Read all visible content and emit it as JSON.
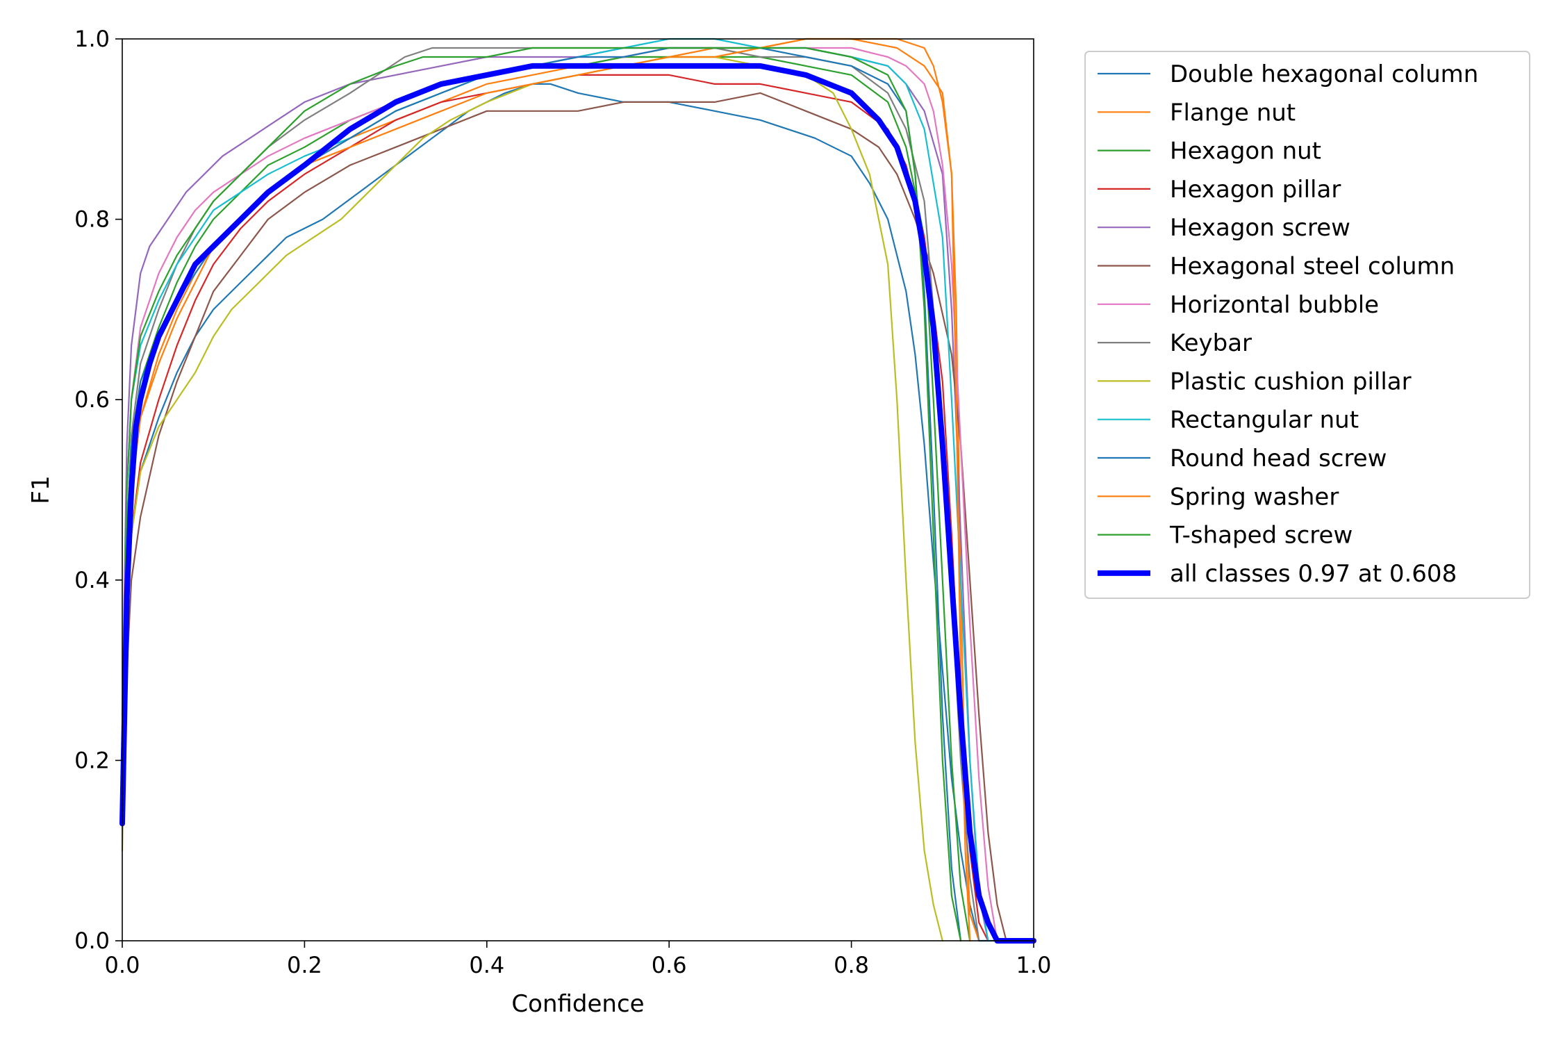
{
  "chart_data": {
    "type": "line",
    "title": "",
    "xlabel": "Confidence",
    "ylabel": "F1",
    "xlim": [
      0.0,
      1.0
    ],
    "ylim": [
      0.0,
      1.0
    ],
    "xticks": [
      "0.0",
      "0.2",
      "0.4",
      "0.6",
      "0.8",
      "1.0"
    ],
    "yticks": [
      "0.0",
      "0.2",
      "0.4",
      "0.6",
      "0.8",
      "1.0"
    ],
    "grid": false,
    "legend_position": "outside right, top",
    "series": [
      {
        "name": "Double hexagonal column",
        "color": "#1f77b4",
        "width": "thin",
        "x": [
          0.0,
          0.005,
          0.01,
          0.02,
          0.04,
          0.06,
          0.08,
          0.1,
          0.12,
          0.15,
          0.18,
          0.22,
          0.26,
          0.3,
          0.34,
          0.38,
          0.42,
          0.45,
          0.47,
          0.5,
          0.55,
          0.6,
          0.65,
          0.7,
          0.73,
          0.76,
          0.8,
          0.82,
          0.84,
          0.86,
          0.87,
          0.88,
          0.89,
          0.9,
          0.91,
          0.92,
          0.93,
          0.94,
          0.95,
          0.96
        ],
        "y": [
          0.15,
          0.35,
          0.45,
          0.52,
          0.58,
          0.63,
          0.67,
          0.7,
          0.72,
          0.75,
          0.78,
          0.8,
          0.83,
          0.86,
          0.89,
          0.92,
          0.94,
          0.95,
          0.95,
          0.94,
          0.93,
          0.93,
          0.92,
          0.91,
          0.9,
          0.89,
          0.87,
          0.84,
          0.8,
          0.72,
          0.65,
          0.55,
          0.42,
          0.3,
          0.18,
          0.1,
          0.04,
          0.0,
          0.0,
          0.0
        ]
      },
      {
        "name": "Flange nut",
        "color": "#ff7f0e",
        "width": "thin",
        "x": [
          0.0,
          0.005,
          0.01,
          0.02,
          0.04,
          0.06,
          0.08,
          0.1,
          0.13,
          0.16,
          0.2,
          0.25,
          0.3,
          0.35,
          0.4,
          0.45,
          0.5,
          0.55,
          0.6,
          0.65,
          0.7,
          0.75,
          0.8,
          0.85,
          0.88,
          0.9,
          0.91,
          0.915,
          0.92,
          0.925,
          0.93,
          0.94
        ],
        "y": [
          0.15,
          0.4,
          0.5,
          0.58,
          0.65,
          0.7,
          0.74,
          0.77,
          0.8,
          0.83,
          0.86,
          0.89,
          0.91,
          0.93,
          0.95,
          0.96,
          0.97,
          0.98,
          0.98,
          0.99,
          0.99,
          1.0,
          1.0,
          0.99,
          0.97,
          0.94,
          0.85,
          0.7,
          0.4,
          0.15,
          0.03,
          0.0
        ]
      },
      {
        "name": "Hexagon nut",
        "color": "#2ca02c",
        "width": "thin",
        "x": [
          0.0,
          0.005,
          0.01,
          0.02,
          0.04,
          0.06,
          0.08,
          0.1,
          0.13,
          0.16,
          0.2,
          0.25,
          0.3,
          0.35,
          0.4,
          0.45,
          0.5,
          0.55,
          0.6,
          0.65,
          0.7,
          0.75,
          0.8,
          0.84,
          0.86,
          0.88,
          0.89,
          0.9,
          0.91,
          0.92,
          0.93
        ],
        "y": [
          0.2,
          0.45,
          0.55,
          0.62,
          0.68,
          0.73,
          0.77,
          0.8,
          0.83,
          0.86,
          0.88,
          0.91,
          0.93,
          0.95,
          0.96,
          0.97,
          0.97,
          0.98,
          0.98,
          0.98,
          0.98,
          0.97,
          0.96,
          0.93,
          0.88,
          0.78,
          0.6,
          0.4,
          0.2,
          0.06,
          0.0
        ]
      },
      {
        "name": "Hexagon pillar",
        "color": "#d62728",
        "width": "thin",
        "x": [
          0.0,
          0.005,
          0.01,
          0.02,
          0.04,
          0.06,
          0.08,
          0.1,
          0.13,
          0.16,
          0.2,
          0.25,
          0.3,
          0.35,
          0.4,
          0.45,
          0.5,
          0.55,
          0.6,
          0.65,
          0.7,
          0.75,
          0.8,
          0.84,
          0.86,
          0.88,
          0.9,
          0.91,
          0.92,
          0.93,
          0.94,
          0.95
        ],
        "y": [
          0.15,
          0.35,
          0.45,
          0.53,
          0.6,
          0.66,
          0.71,
          0.75,
          0.79,
          0.82,
          0.85,
          0.88,
          0.91,
          0.93,
          0.94,
          0.95,
          0.96,
          0.96,
          0.96,
          0.95,
          0.95,
          0.94,
          0.93,
          0.9,
          0.86,
          0.78,
          0.62,
          0.45,
          0.25,
          0.1,
          0.02,
          0.0
        ]
      },
      {
        "name": "Hexagon screw",
        "color": "#9467bd",
        "width": "thin",
        "x": [
          0.0,
          0.005,
          0.01,
          0.02,
          0.03,
          0.05,
          0.07,
          0.09,
          0.11,
          0.14,
          0.17,
          0.2,
          0.25,
          0.3,
          0.35,
          0.4,
          0.45,
          0.5,
          0.55,
          0.6,
          0.65,
          0.7,
          0.75,
          0.8,
          0.84,
          0.86,
          0.88,
          0.9,
          0.91,
          0.92,
          0.93,
          0.94,
          0.95
        ],
        "y": [
          0.25,
          0.55,
          0.66,
          0.74,
          0.77,
          0.8,
          0.83,
          0.85,
          0.87,
          0.89,
          0.91,
          0.93,
          0.95,
          0.96,
          0.97,
          0.98,
          0.98,
          0.98,
          0.99,
          0.99,
          0.99,
          0.99,
          0.99,
          0.98,
          0.97,
          0.95,
          0.92,
          0.85,
          0.7,
          0.45,
          0.2,
          0.05,
          0.0
        ]
      },
      {
        "name": "Hexagonal steel column",
        "color": "#8c564b",
        "width": "thin",
        "x": [
          0.0,
          0.005,
          0.01,
          0.02,
          0.04,
          0.06,
          0.08,
          0.1,
          0.13,
          0.16,
          0.2,
          0.25,
          0.3,
          0.35,
          0.4,
          0.45,
          0.5,
          0.55,
          0.6,
          0.65,
          0.7,
          0.75,
          0.8,
          0.83,
          0.85,
          0.87,
          0.89,
          0.91,
          0.92,
          0.93,
          0.94,
          0.95,
          0.96,
          0.97
        ],
        "y": [
          0.15,
          0.3,
          0.4,
          0.47,
          0.56,
          0.62,
          0.67,
          0.72,
          0.76,
          0.8,
          0.83,
          0.86,
          0.88,
          0.9,
          0.92,
          0.92,
          0.92,
          0.93,
          0.93,
          0.93,
          0.94,
          0.92,
          0.9,
          0.88,
          0.85,
          0.8,
          0.74,
          0.65,
          0.55,
          0.4,
          0.25,
          0.12,
          0.04,
          0.0
        ]
      },
      {
        "name": "Horizontal bubble",
        "color": "#e377c2",
        "width": "thin",
        "x": [
          0.0,
          0.005,
          0.01,
          0.02,
          0.04,
          0.06,
          0.08,
          0.1,
          0.13,
          0.16,
          0.2,
          0.25,
          0.3,
          0.35,
          0.4,
          0.45,
          0.5,
          0.55,
          0.6,
          0.65,
          0.7,
          0.75,
          0.8,
          0.84,
          0.86,
          0.88,
          0.89,
          0.9,
          0.91,
          0.92,
          0.93,
          0.94,
          0.95,
          0.96
        ],
        "y": [
          0.2,
          0.5,
          0.6,
          0.68,
          0.74,
          0.78,
          0.81,
          0.83,
          0.85,
          0.87,
          0.89,
          0.91,
          0.93,
          0.95,
          0.96,
          0.97,
          0.98,
          0.98,
          0.99,
          0.99,
          0.99,
          0.99,
          0.99,
          0.98,
          0.97,
          0.95,
          0.92,
          0.86,
          0.75,
          0.55,
          0.35,
          0.18,
          0.06,
          0.0
        ]
      },
      {
        "name": "Keybar",
        "color": "#7f7f7f",
        "width": "thin",
        "x": [
          0.0,
          0.005,
          0.01,
          0.02,
          0.04,
          0.06,
          0.08,
          0.1,
          0.13,
          0.16,
          0.2,
          0.25,
          0.28,
          0.31,
          0.34,
          0.37,
          0.4,
          0.45,
          0.5,
          0.55,
          0.6,
          0.65,
          0.7,
          0.75,
          0.8,
          0.84,
          0.86,
          0.88,
          0.89,
          0.9,
          0.91,
          0.92,
          0.93,
          0.94
        ],
        "y": [
          0.2,
          0.45,
          0.56,
          0.64,
          0.7,
          0.75,
          0.79,
          0.82,
          0.85,
          0.88,
          0.91,
          0.94,
          0.96,
          0.98,
          0.99,
          0.99,
          0.99,
          0.99,
          0.99,
          0.99,
          0.99,
          0.99,
          0.98,
          0.98,
          0.97,
          0.94,
          0.9,
          0.82,
          0.7,
          0.55,
          0.38,
          0.2,
          0.07,
          0.0
        ]
      },
      {
        "name": "Plastic cushion pillar",
        "color": "#bcbd22",
        "width": "thin",
        "x": [
          0.0,
          0.005,
          0.01,
          0.02,
          0.04,
          0.06,
          0.08,
          0.1,
          0.12,
          0.15,
          0.18,
          0.21,
          0.24,
          0.27,
          0.3,
          0.33,
          0.36,
          0.4,
          0.45,
          0.5,
          0.55,
          0.6,
          0.65,
          0.7,
          0.75,
          0.78,
          0.8,
          0.82,
          0.84,
          0.85,
          0.86,
          0.87,
          0.88,
          0.89,
          0.9
        ],
        "y": [
          0.1,
          0.35,
          0.45,
          0.52,
          0.57,
          0.6,
          0.63,
          0.67,
          0.7,
          0.73,
          0.76,
          0.78,
          0.8,
          0.83,
          0.86,
          0.89,
          0.91,
          0.93,
          0.95,
          0.96,
          0.97,
          0.98,
          0.98,
          0.97,
          0.96,
          0.94,
          0.9,
          0.85,
          0.75,
          0.6,
          0.4,
          0.22,
          0.1,
          0.04,
          0.0
        ]
      },
      {
        "name": "Rectangular nut",
        "color": "#17becf",
        "width": "thin",
        "x": [
          0.0,
          0.005,
          0.01,
          0.02,
          0.04,
          0.06,
          0.08,
          0.1,
          0.13,
          0.16,
          0.2,
          0.25,
          0.3,
          0.35,
          0.4,
          0.45,
          0.5,
          0.55,
          0.6,
          0.65,
          0.7,
          0.75,
          0.8,
          0.84,
          0.86,
          0.88,
          0.9,
          0.91,
          0.92,
          0.93,
          0.94,
          0.95
        ],
        "y": [
          0.2,
          0.5,
          0.6,
          0.66,
          0.71,
          0.75,
          0.78,
          0.81,
          0.83,
          0.85,
          0.87,
          0.89,
          0.92,
          0.94,
          0.96,
          0.97,
          0.98,
          0.99,
          1.0,
          1.0,
          0.99,
          0.99,
          0.98,
          0.97,
          0.95,
          0.9,
          0.78,
          0.6,
          0.4,
          0.2,
          0.06,
          0.0
        ]
      },
      {
        "name": "Round head screw",
        "color": "#1f77b4",
        "width": "thin",
        "x": [
          0.0,
          0.005,
          0.01,
          0.02,
          0.04,
          0.06,
          0.08,
          0.1,
          0.13,
          0.16,
          0.2,
          0.25,
          0.3,
          0.35,
          0.4,
          0.45,
          0.5,
          0.55,
          0.6,
          0.65,
          0.7,
          0.75,
          0.8,
          0.84,
          0.86,
          0.87,
          0.88,
          0.89,
          0.9,
          0.91,
          0.92
        ],
        "y": [
          0.2,
          0.45,
          0.55,
          0.62,
          0.67,
          0.71,
          0.74,
          0.77,
          0.8,
          0.83,
          0.86,
          0.89,
          0.92,
          0.94,
          0.96,
          0.97,
          0.98,
          0.98,
          0.99,
          0.99,
          0.99,
          0.98,
          0.97,
          0.95,
          0.92,
          0.85,
          0.72,
          0.5,
          0.25,
          0.08,
          0.0
        ]
      },
      {
        "name": "Spring washer",
        "color": "#ff7f0e",
        "width": "thin",
        "x": [
          0.0,
          0.005,
          0.01,
          0.02,
          0.04,
          0.06,
          0.08,
          0.1,
          0.13,
          0.16,
          0.2,
          0.25,
          0.3,
          0.35,
          0.4,
          0.45,
          0.5,
          0.55,
          0.6,
          0.65,
          0.7,
          0.75,
          0.8,
          0.85,
          0.88,
          0.89,
          0.9,
          0.91,
          0.915,
          0.92,
          0.925,
          0.93
        ],
        "y": [
          0.15,
          0.4,
          0.5,
          0.58,
          0.64,
          0.69,
          0.73,
          0.77,
          0.8,
          0.83,
          0.86,
          0.88,
          0.9,
          0.92,
          0.94,
          0.95,
          0.96,
          0.97,
          0.98,
          0.98,
          0.99,
          1.0,
          1.0,
          1.0,
          0.99,
          0.97,
          0.93,
          0.85,
          0.6,
          0.3,
          0.1,
          0.0
        ]
      },
      {
        "name": "T-shaped screw",
        "color": "#2ca02c",
        "width": "thin",
        "x": [
          0.0,
          0.005,
          0.01,
          0.02,
          0.04,
          0.06,
          0.08,
          0.1,
          0.13,
          0.16,
          0.2,
          0.25,
          0.3,
          0.33,
          0.36,
          0.4,
          0.45,
          0.5,
          0.55,
          0.6,
          0.65,
          0.7,
          0.75,
          0.8,
          0.84,
          0.86,
          0.87,
          0.88,
          0.89,
          0.9,
          0.91,
          0.92
        ],
        "y": [
          0.2,
          0.5,
          0.6,
          0.67,
          0.72,
          0.76,
          0.79,
          0.82,
          0.85,
          0.88,
          0.92,
          0.95,
          0.97,
          0.98,
          0.98,
          0.98,
          0.99,
          0.99,
          0.99,
          0.99,
          0.99,
          0.99,
          0.99,
          0.98,
          0.96,
          0.92,
          0.85,
          0.7,
          0.45,
          0.2,
          0.05,
          0.0
        ]
      },
      {
        "name": "all classes 0.97 at 0.608",
        "color": "#0000ff",
        "width": "thick",
        "x": [
          0.0,
          0.005,
          0.01,
          0.015,
          0.02,
          0.03,
          0.04,
          0.06,
          0.08,
          0.1,
          0.13,
          0.16,
          0.2,
          0.25,
          0.3,
          0.35,
          0.4,
          0.45,
          0.5,
          0.55,
          0.6,
          0.608,
          0.65,
          0.7,
          0.75,
          0.8,
          0.83,
          0.85,
          0.86,
          0.87,
          0.88,
          0.89,
          0.9,
          0.91,
          0.92,
          0.93,
          0.94,
          0.95,
          0.96,
          0.97,
          1.0
        ],
        "y": [
          0.13,
          0.38,
          0.5,
          0.57,
          0.6,
          0.64,
          0.67,
          0.71,
          0.75,
          0.77,
          0.8,
          0.83,
          0.86,
          0.9,
          0.93,
          0.95,
          0.96,
          0.97,
          0.97,
          0.97,
          0.97,
          0.97,
          0.97,
          0.97,
          0.96,
          0.94,
          0.91,
          0.88,
          0.85,
          0.82,
          0.76,
          0.68,
          0.55,
          0.4,
          0.25,
          0.12,
          0.05,
          0.02,
          0.0,
          0.0,
          0.0
        ]
      }
    ]
  }
}
